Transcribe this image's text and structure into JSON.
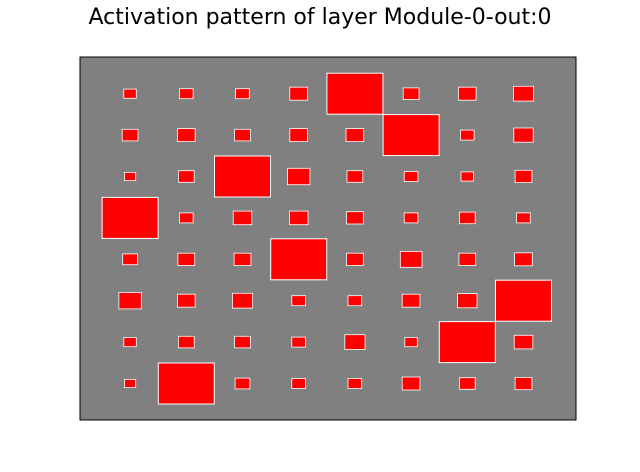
{
  "chart_data": {
    "type": "heatmap",
    "title": "Activation pattern of layer Module-0-out:0",
    "rows": 8,
    "cols": 8,
    "background_color": "#808080",
    "cell_color": "#ff0000",
    "edge_color": "#ffffff",
    "values": [
      [
        0.05,
        0.06,
        0.06,
        0.1,
        1.0,
        0.08,
        0.1,
        0.13
      ],
      [
        0.08,
        0.1,
        0.08,
        0.1,
        0.1,
        1.0,
        0.06,
        0.12
      ],
      [
        0.04,
        0.08,
        1.0,
        0.16,
        0.08,
        0.06,
        0.05,
        0.09
      ],
      [
        1.0,
        0.06,
        0.11,
        0.11,
        0.09,
        0.06,
        0.08,
        0.06
      ],
      [
        0.07,
        0.09,
        0.09,
        1.0,
        0.09,
        0.15,
        0.09,
        0.1
      ],
      [
        0.16,
        0.1,
        0.13,
        0.06,
        0.06,
        0.1,
        0.12,
        1.0
      ],
      [
        0.05,
        0.08,
        0.08,
        0.06,
        0.13,
        0.05,
        1.0,
        0.11
      ],
      [
        0.04,
        1.0,
        0.07,
        0.06,
        0.06,
        0.1,
        0.08,
        0.09
      ]
    ],
    "grid": false,
    "axes_ticks": false
  }
}
